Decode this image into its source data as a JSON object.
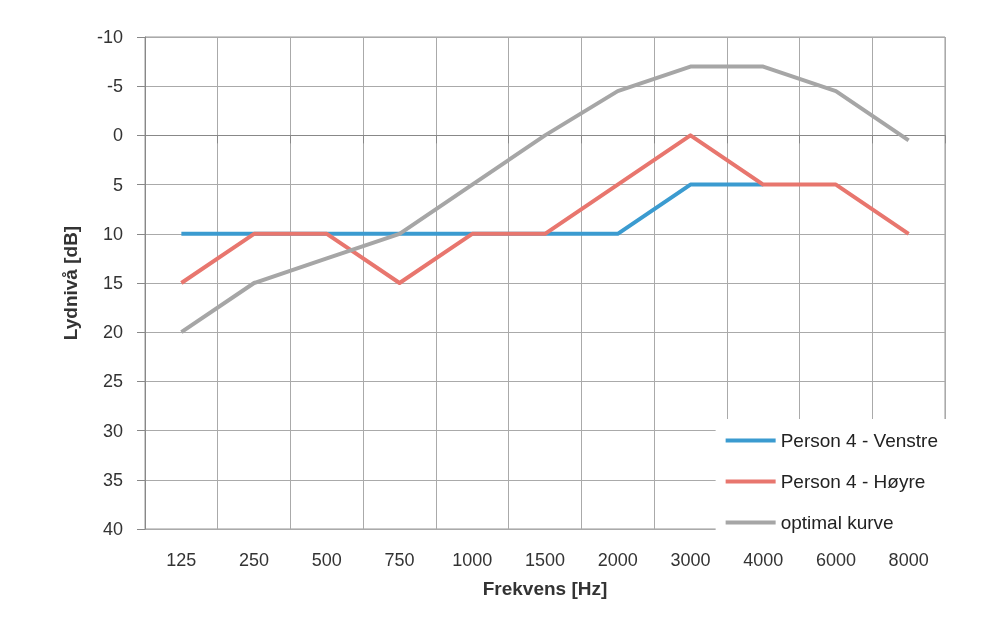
{
  "chart_data": {
    "type": "line",
    "xlabel": "Frekvens [Hz]",
    "ylabel": "Lydnivå [dB]",
    "categories": [
      "125",
      "250",
      "500",
      "750",
      "1000",
      "1500",
      "2000",
      "3000",
      "4000",
      "6000",
      "8000"
    ],
    "series": [
      {
        "name": "Person 4 - Venstre",
        "color": "#3b9bd0",
        "values": [
          10,
          10,
          10,
          10,
          10,
          10,
          10,
          5,
          5,
          null,
          null
        ]
      },
      {
        "name": "Person 4 - Høyre",
        "color": "#e8766e",
        "values": [
          15,
          10,
          10,
          15,
          10,
          10,
          5,
          0,
          5,
          5,
          10
        ]
      },
      {
        "name": "optimal kurve",
        "color": "#a6a6a6",
        "values": [
          20,
          15,
          12.5,
          10,
          5,
          0,
          -4.5,
          -7,
          -7,
          -4.5,
          0.5
        ]
      }
    ],
    "ylim": [
      40,
      -10
    ],
    "yticks": [
      -10,
      -5,
      0,
      5,
      10,
      15,
      20,
      25,
      30,
      35,
      40
    ],
    "grid": true,
    "legend": "bottom right",
    "marker": "none",
    "line_style": "solid"
  }
}
